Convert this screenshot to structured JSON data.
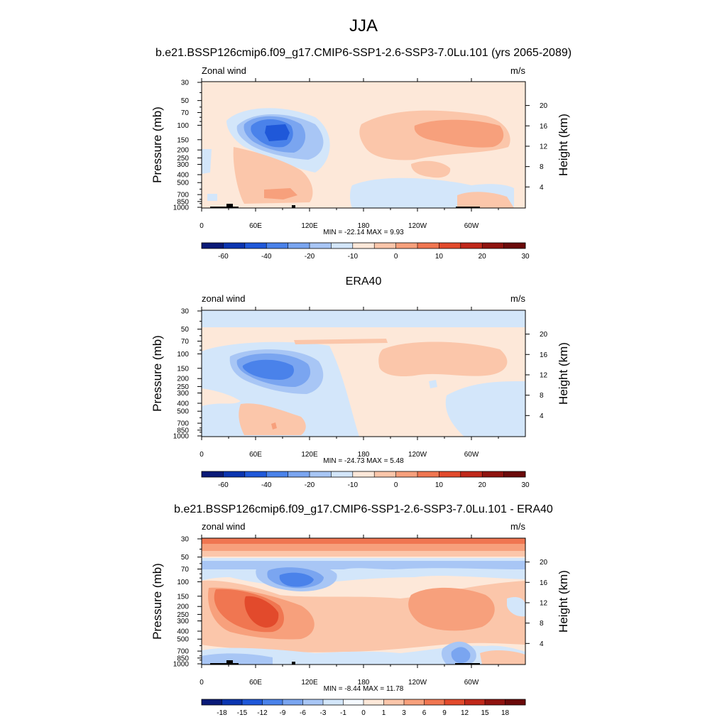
{
  "figure": {
    "title": "JJA"
  },
  "chart_data": [
    {
      "type": "heatmap",
      "title": "b.e21.BSSP126cmip6.f09_g17.CMIP6-SSP1-2.6-SSP3-7.0Lu.101 (yrs 2065-2089)",
      "left_label": "Zonal wind",
      "units": "m/s",
      "ylabel": "Pressure (mb)",
      "ylabel_right": "Height (km)",
      "pressure_ticks": [
        "30",
        "50",
        "70",
        "100",
        "150",
        "200",
        "250",
        "300",
        "400",
        "500",
        "700",
        "850",
        "1000"
      ],
      "pressure_values": [
        30,
        50,
        70,
        100,
        150,
        200,
        250,
        300,
        400,
        500,
        700,
        850,
        1000
      ],
      "height_ticks": [
        "20",
        "16",
        "12",
        "8",
        "4"
      ],
      "height_values": [
        20,
        16,
        12,
        8,
        4
      ],
      "x_ticks": [
        "0",
        "60E",
        "120E",
        "180",
        "120W",
        "60W"
      ],
      "x_values": [
        0,
        60,
        120,
        180,
        240,
        300
      ],
      "xlim": [
        0,
        360
      ],
      "min_max_text": "MIN = -22.14  MAX =   9.93",
      "colorbar_labels": [
        "-60",
        "-40",
        "-20",
        "-10",
        "0",
        "10",
        "20",
        "30"
      ],
      "colorbar_colors": [
        "#0a1a78",
        "#0b35b0",
        "#1f58d9",
        "#4a82ea",
        "#7aa5f0",
        "#a8c6f5",
        "#d3e6fa",
        "#fde8d9",
        "#fbc6aa",
        "#f7a07c",
        "#f07651",
        "#e24a2c",
        "#c0281a",
        "#8f130f",
        "#6b0a0a"
      ],
      "colorbar_bounds": [
        -70,
        -60,
        -50,
        -40,
        -30,
        -20,
        -15,
        -10,
        -5,
        0,
        5,
        10,
        15,
        20,
        25,
        30
      ]
    },
    {
      "type": "heatmap",
      "title": "ERA40",
      "left_label": "zonal wind",
      "units": "m/s",
      "ylabel": "Pressure (mb)",
      "ylabel_right": "Height (km)",
      "pressure_ticks": [
        "30",
        "50",
        "70",
        "100",
        "150",
        "200",
        "250",
        "300",
        "400",
        "500",
        "700",
        "850",
        "1000"
      ],
      "pressure_values": [
        30,
        50,
        70,
        100,
        150,
        200,
        250,
        300,
        400,
        500,
        700,
        850,
        1000
      ],
      "height_ticks": [
        "20",
        "16",
        "12",
        "8",
        "4"
      ],
      "height_values": [
        20,
        16,
        12,
        8,
        4
      ],
      "x_ticks": [
        "0",
        "60E",
        "120E",
        "180",
        "120W",
        "60W"
      ],
      "x_values": [
        0,
        60,
        120,
        180,
        240,
        300
      ],
      "xlim": [
        0,
        360
      ],
      "min_max_text": "MIN = -24.73  MAX =   5.48",
      "colorbar_labels": [
        "-60",
        "-40",
        "-20",
        "-10",
        "0",
        "10",
        "20",
        "30"
      ],
      "colorbar_colors": [
        "#0a1a78",
        "#0b35b0",
        "#1f58d9",
        "#4a82ea",
        "#7aa5f0",
        "#a8c6f5",
        "#d3e6fa",
        "#fde8d9",
        "#fbc6aa",
        "#f7a07c",
        "#f07651",
        "#e24a2c",
        "#c0281a",
        "#8f130f",
        "#6b0a0a"
      ],
      "colorbar_bounds": [
        -70,
        -60,
        -50,
        -40,
        -30,
        -20,
        -15,
        -10,
        -5,
        0,
        5,
        10,
        15,
        20,
        25,
        30
      ]
    },
    {
      "type": "heatmap",
      "title": "b.e21.BSSP126cmip6.f09_g17.CMIP6-SSP1-2.6-SSP3-7.0Lu.101 - ERA40",
      "left_label": "zonal wind",
      "units": "m/s",
      "ylabel": "Pressure (mb)",
      "ylabel_right": "Height (km)",
      "pressure_ticks": [
        "30",
        "50",
        "70",
        "100",
        "150",
        "200",
        "250",
        "300",
        "400",
        "500",
        "700",
        "850",
        "1000"
      ],
      "pressure_values": [
        30,
        50,
        70,
        100,
        150,
        200,
        250,
        300,
        400,
        500,
        700,
        850,
        1000
      ],
      "height_ticks": [
        "20",
        "16",
        "12",
        "8",
        "4"
      ],
      "height_values": [
        20,
        16,
        12,
        8,
        4
      ],
      "x_ticks": [
        "0",
        "60E",
        "120E",
        "180",
        "120W",
        "60W"
      ],
      "x_values": [
        0,
        60,
        120,
        180,
        240,
        300
      ],
      "xlim": [
        0,
        360
      ],
      "min_max_text": "MIN =  -8.44  MAX =  11.78",
      "colorbar_labels": [
        "-18",
        "-15",
        "-12",
        "-9",
        "-6",
        "-3",
        "-1",
        "0",
        "1",
        "3",
        "6",
        "9",
        "12",
        "15",
        "18"
      ],
      "colorbar_colors": [
        "#0a1a78",
        "#0b35b0",
        "#1f58d9",
        "#4a82ea",
        "#7aa5f0",
        "#a8c6f5",
        "#d3e6fa",
        "#f4f9ff",
        "#fde8d9",
        "#fbc6aa",
        "#f7a07c",
        "#f07651",
        "#e24a2c",
        "#c0281a",
        "#8f130f",
        "#6b0a0a"
      ],
      "colorbar_bounds": [
        -21,
        -18,
        -15,
        -12,
        -9,
        -6,
        -3,
        -1,
        0,
        1,
        3,
        6,
        9,
        12,
        15,
        18,
        21
      ]
    }
  ]
}
